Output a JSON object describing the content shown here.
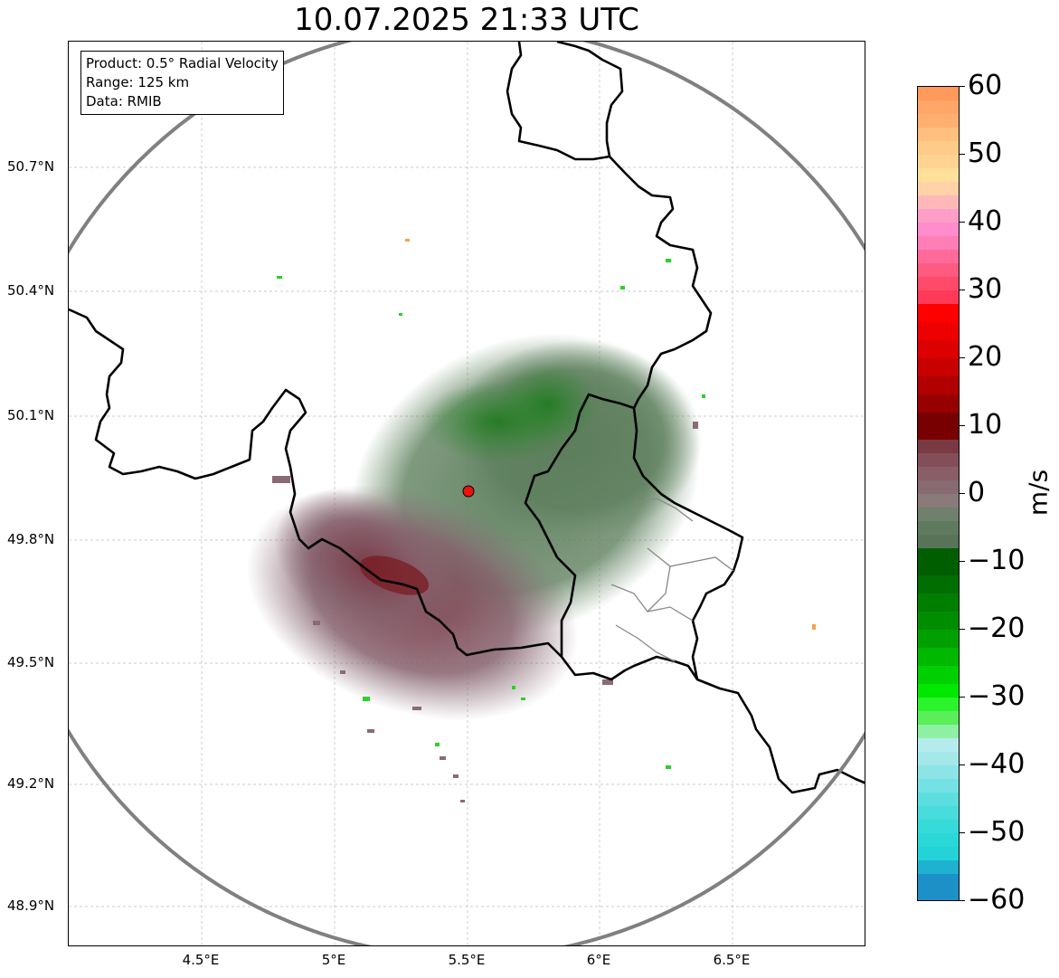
{
  "title": "10.07.2025 21:33 UTC",
  "info": {
    "product": "Product: 0.5° Radial Velocity",
    "range": "Range: 125 km",
    "data": "Data: RMIB"
  },
  "map": {
    "lon_range": [
      4.0,
      7.0
    ],
    "lat_range": [
      48.8,
      51.0
    ],
    "radar_site": {
      "lon": 5.505,
      "lat": 49.915
    },
    "lat_ticks": [
      "50.7°N",
      "50.4°N",
      "50.1°N",
      "49.8°N",
      "49.5°N",
      "49.2°N",
      "48.9°N"
    ],
    "lon_ticks": [
      "4.5°E",
      "5°E",
      "5.5°E",
      "6°E",
      "6.5°E"
    ]
  },
  "colorbar": {
    "unit": "m/s",
    "min": -60,
    "max": 60,
    "labels": [
      "60",
      "50",
      "40",
      "30",
      "20",
      "10",
      "0",
      "−10",
      "−20",
      "−30",
      "−40",
      "−50",
      "−60"
    ]
  },
  "colors": {
    "border": "#000000",
    "range_ring": "#808080",
    "inbound": "#5e8060",
    "outbound": "#7e4a58",
    "site_marker": "#ee1111"
  }
}
